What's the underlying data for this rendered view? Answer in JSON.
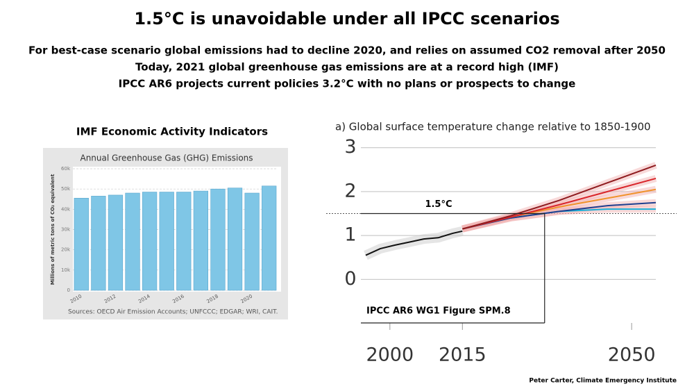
{
  "slide": {
    "title": "1.5°C is unavoidable under all IPCC scenarios",
    "lines": [
      "For best-case scenario global emissions had to decline 2020, and relies on assumed CO2 removal after 2050",
      "Today, 2021 global greenhouse gas emissions are at a record high (IMF)",
      "IPCC AR6 projects current policies 3.2°C with no plans or prospects to change"
    ],
    "credit": "Peter Carter, Climate Emergency Institute"
  },
  "chart_data": [
    {
      "type": "bar",
      "heading": "IMF Economic Activity Indicators",
      "title": "Annual Greenhouse Gas (GHG) Emissions",
      "y_label": "Millions of metric tons of CO₂ equivalent",
      "source": "Sources: OECD Air Emission Accounts; UNFCCC; EDGAR; WRI, CAIT.",
      "categories": [
        "2010",
        null,
        "2012",
        null,
        "2014",
        null,
        "2016",
        null,
        "2018",
        null,
        "2020",
        null
      ],
      "values": [
        45500,
        46500,
        47000,
        48000,
        48500,
        48500,
        48500,
        49000,
        50000,
        50500,
        48000,
        51500
      ],
      "color": "#7fc6e6",
      "ylim": [
        0,
        60000
      ],
      "yticks": [
        0,
        {
          "value": 10000,
          "label": "10k"
        },
        {
          "value": 20000,
          "label": "20k"
        },
        {
          "value": 30000,
          "label": "30k"
        },
        {
          "value": 40000,
          "label": "40k"
        },
        {
          "value": 50000,
          "label": "50k"
        },
        {
          "value": 60000,
          "label": "60k"
        }
      ],
      "grid": true
    },
    {
      "type": "line",
      "title": "a) Global surface temperature change relative to 1850-1900",
      "xlim": [
        1994,
        2055
      ],
      "ylim": [
        -0.2,
        3.2
      ],
      "xticks": [
        2000,
        2015,
        2050
      ],
      "yticks": [
        0,
        1,
        2,
        3
      ],
      "grid": true,
      "threshold": {
        "value": 1.5,
        "label": "1.5°C"
      },
      "crossing_x": 2032,
      "annotation": "IPCC AR6 WG1 Figure SPM.8",
      "series": [
        {
          "color": "#111111",
          "x": [
            1995,
            1998,
            2001,
            2004,
            2007,
            2010,
            2013,
            2015
          ],
          "values": [
            0.55,
            0.7,
            0.78,
            0.85,
            0.92,
            0.95,
            1.05,
            1.1
          ]
        },
        {
          "color": "#1ab0d8",
          "x": [
            2015,
            2025,
            2035,
            2045,
            2055
          ],
          "values": [
            1.15,
            1.4,
            1.55,
            1.6,
            1.6
          ]
        },
        {
          "color": "#1f3f8f",
          "x": [
            2015,
            2025,
            2035,
            2045,
            2055
          ],
          "values": [
            1.15,
            1.4,
            1.55,
            1.68,
            1.75
          ]
        },
        {
          "color": "#f0922b",
          "x": [
            2015,
            2025,
            2035,
            2045,
            2055
          ],
          "values": [
            1.15,
            1.42,
            1.65,
            1.85,
            2.05
          ]
        },
        {
          "color": "#d9262b",
          "x": [
            2015,
            2025,
            2035,
            2045,
            2055
          ],
          "values": [
            1.15,
            1.42,
            1.7,
            2.0,
            2.3
          ]
        },
        {
          "color": "#8e1b1f",
          "x": [
            2015,
            2025,
            2035,
            2045,
            2055
          ],
          "values": [
            1.15,
            1.45,
            1.8,
            2.2,
            2.6
          ]
        }
      ]
    }
  ]
}
